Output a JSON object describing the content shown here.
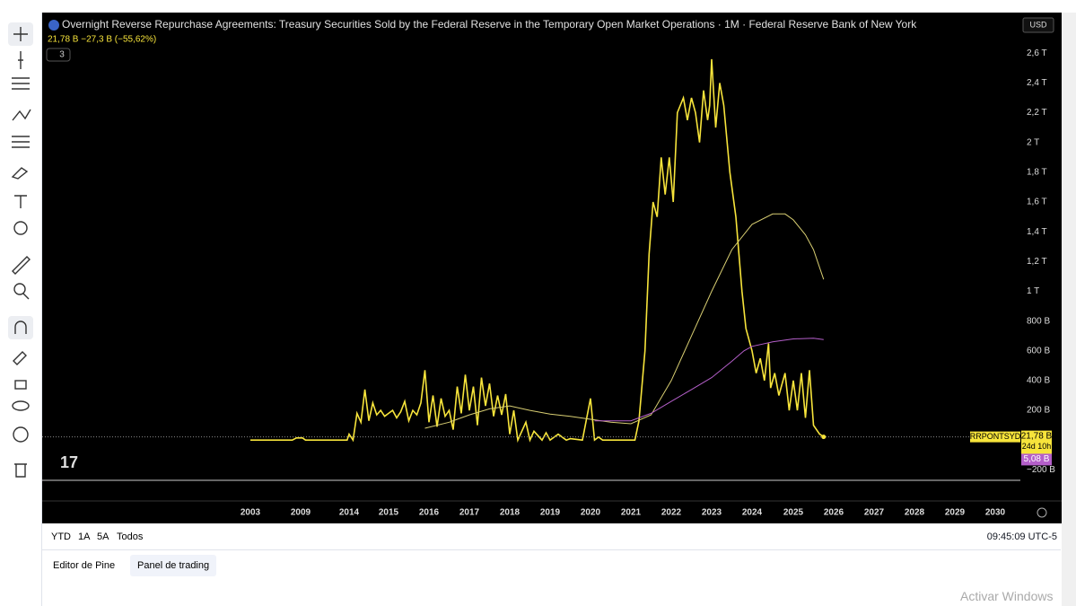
{
  "chart_data": {
    "type": "line",
    "title": "Overnight Reverse Repurchase Agreements: Treasury Securities Sold by the Federal Reserve in the Temporary Open Market Operations · 1M · Federal Reserve Bank of New York",
    "legend_values": "21,78 B −27,3 B (−55,62%)",
    "indicator_count": "3",
    "currency": "USD",
    "symbol_label": "RRPONTSYD",
    "last_value": {
      "value": 21.78,
      "label": "21,78 B"
    },
    "countdown": "24d 10h",
    "ma_value": {
      "value": 5.08,
      "label": "5,08 B"
    },
    "ylim": [
      -270,
      2710
    ],
    "yticks": [
      {
        "value": -200,
        "label": "−200 B"
      },
      {
        "value": 200,
        "label": "200 B"
      },
      {
        "value": 400,
        "label": "400 B"
      },
      {
        "value": 600,
        "label": "600 B"
      },
      {
        "value": 800,
        "label": "800 B"
      },
      {
        "value": 1000,
        "label": "1 T"
      },
      {
        "value": 1200,
        "label": "1,2 T"
      },
      {
        "value": 1400,
        "label": "1,4 T"
      },
      {
        "value": 1600,
        "label": "1,6 T"
      },
      {
        "value": 1800,
        "label": "1,8 T"
      },
      {
        "value": 2000,
        "label": "2 T"
      },
      {
        "value": 2200,
        "label": "2,2 T"
      },
      {
        "value": 2400,
        "label": "2,4 T"
      },
      {
        "value": 2600,
        "label": "2,6 T"
      }
    ],
    "xticks": [
      2003,
      2009,
      2014,
      2015,
      2016,
      2017,
      2018,
      2019,
      2020,
      2021,
      2022,
      2023,
      2024,
      2025,
      2026,
      2027,
      2028,
      2029,
      2030
    ],
    "series": [
      {
        "color": "#f7e43b",
        "x": [
          2003.0,
          2008.0,
          2008.5,
          2009.2,
          2009.5,
          2013.8,
          2014.0,
          2014.1,
          2014.2,
          2014.3,
          2014.4,
          2014.5,
          2014.6,
          2014.7,
          2014.8,
          2014.9,
          2015.0,
          2015.1,
          2015.2,
          2015.3,
          2015.4,
          2015.5,
          2015.6,
          2015.7,
          2015.8,
          2015.9,
          2016.0,
          2016.1,
          2016.2,
          2016.3,
          2016.4,
          2016.5,
          2016.6,
          2016.7,
          2016.8,
          2016.9,
          2017.0,
          2017.1,
          2017.2,
          2017.3,
          2017.4,
          2017.5,
          2017.6,
          2017.7,
          2017.8,
          2017.9,
          2018.0,
          2018.1,
          2018.2,
          2018.4,
          2018.5,
          2018.6,
          2018.8,
          2018.9,
          2019.0,
          2019.2,
          2019.4,
          2019.5,
          2019.8,
          2020.0,
          2020.1,
          2020.2,
          2020.3,
          2021.1,
          2021.2,
          2021.35,
          2021.45,
          2021.55,
          2021.65,
          2021.75,
          2021.85,
          2021.95,
          2022.05,
          2022.15,
          2022.3,
          2022.4,
          2022.5,
          2022.6,
          2022.7,
          2022.8,
          2022.9,
          2022.95,
          2023.0,
          2023.1,
          2023.2,
          2023.3,
          2023.45,
          2023.6,
          2023.75,
          2023.85,
          2024.0,
          2024.1,
          2024.2,
          2024.3,
          2024.4,
          2024.45,
          2024.55,
          2024.65,
          2024.8,
          2024.9,
          2025.0,
          2025.1,
          2025.2,
          2025.3,
          2025.4,
          2025.5,
          2025.65,
          2025.75
        ],
        "values": [
          0,
          0,
          15,
          15,
          0,
          0,
          40,
          0,
          180,
          120,
          340,
          130,
          250,
          170,
          200,
          160,
          180,
          200,
          150,
          190,
          260,
          130,
          200,
          170,
          250,
          470,
          120,
          300,
          90,
          280,
          160,
          200,
          70,
          360,
          180,
          440,
          200,
          360,
          100,
          420,
          230,
          380,
          160,
          300,
          170,
          310,
          40,
          200,
          0,
          120,
          0,
          60,
          0,
          50,
          0,
          40,
          0,
          10,
          0,
          280,
          0,
          20,
          0,
          0,
          130,
          600,
          1250,
          1600,
          1500,
          1900,
          1650,
          1900,
          1600,
          2200,
          2300,
          2150,
          2300,
          2200,
          2000,
          2350,
          2150,
          2250,
          2560,
          2100,
          2400,
          2250,
          1800,
          1500,
          1000,
          750,
          600,
          450,
          550,
          400,
          650,
          350,
          450,
          300,
          450,
          200,
          400,
          200,
          450,
          150,
          470,
          100,
          40,
          21.78
        ]
      },
      {
        "color": "#d8ce72",
        "x": [
          2015.9,
          2016.5,
          2017.0,
          2017.5,
          2018.0,
          2018.5,
          2019.0,
          2019.5,
          2020.0,
          2020.5,
          2021.0,
          2021.5,
          2022.0,
          2022.5,
          2023.0,
          2023.5,
          2024.0,
          2024.5,
          2024.8,
          2025.0,
          2025.3,
          2025.5,
          2025.75
        ],
        "values": [
          80,
          120,
          170,
          210,
          230,
          200,
          175,
          160,
          140,
          120,
          110,
          170,
          400,
          700,
          1000,
          1280,
          1450,
          1520,
          1520,
          1480,
          1380,
          1280,
          1080
        ]
      },
      {
        "color": "#b45fc9",
        "x": [
          2020.1,
          2020.5,
          2021.0,
          2021.5,
          2022.0,
          2022.5,
          2023.0,
          2023.5,
          2023.8,
          2024.0,
          2024.5,
          2025.0,
          2025.5,
          2025.75
        ],
        "values": [
          130,
          130,
          130,
          180,
          260,
          340,
          420,
          530,
          600,
          630,
          660,
          680,
          685,
          675
        ]
      }
    ]
  },
  "bottom_bar": {
    "ranges": [
      "YTD",
      "1A",
      "5A",
      "Todos"
    ],
    "clock": "09:45:09 UTC-5"
  },
  "tabs": [
    "Editor de Pine",
    "Panel de trading"
  ],
  "watermark": "Activar Windows"
}
